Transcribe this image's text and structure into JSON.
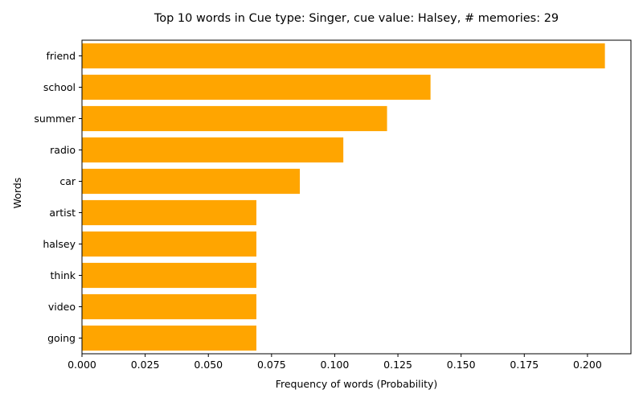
{
  "chart_data": {
    "type": "bar",
    "orientation": "horizontal",
    "title": "Top 10 words in Cue type: Singer, cue value: Halsey, # memories: 29",
    "xlabel": "Frequency of words (Probability)",
    "ylabel": "Words",
    "categories": [
      "friend",
      "school",
      "summer",
      "radio",
      "car",
      "artist",
      "halsey",
      "think",
      "video",
      "going"
    ],
    "values": [
      0.2069,
      0.1379,
      0.1207,
      0.1034,
      0.0862,
      0.069,
      0.069,
      0.069,
      0.069,
      0.069
    ],
    "xlim": [
      0,
      0.2172
    ],
    "xticks": [
      "0.000",
      "0.025",
      "0.050",
      "0.075",
      "0.100",
      "0.125",
      "0.150",
      "0.175",
      "0.200"
    ],
    "grid": false,
    "legend": "none",
    "bar_color": "#ffa500"
  }
}
